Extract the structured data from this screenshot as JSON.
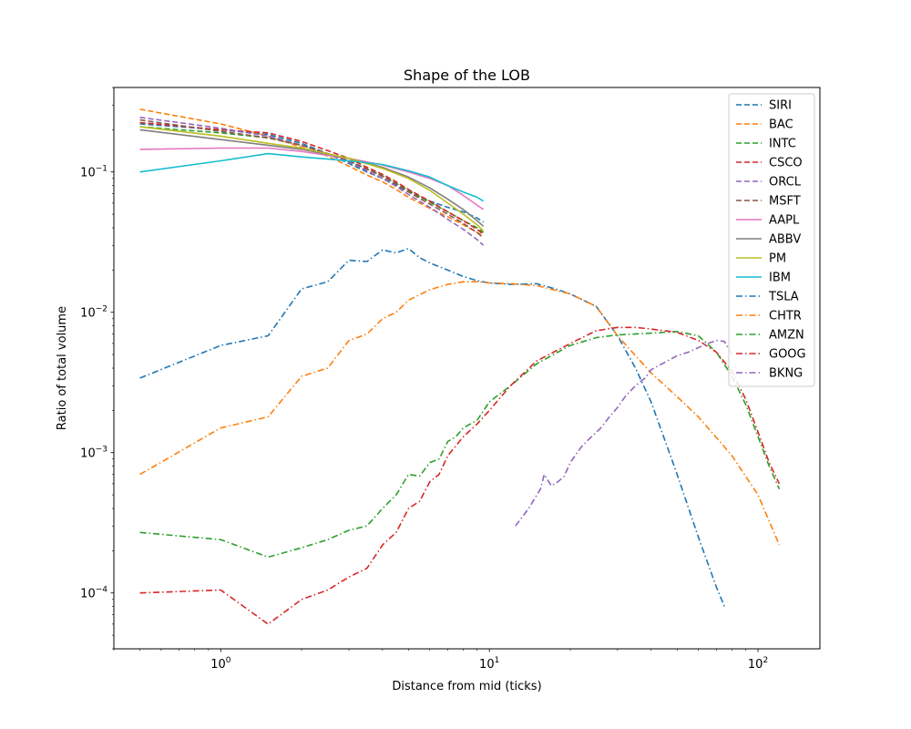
{
  "chart_data": {
    "type": "line",
    "title": "Shape of the LOB",
    "xlabel": "Distance from mid (ticks)",
    "ylabel": "Ratio of total volume",
    "xscale": "log",
    "yscale": "log",
    "xlim": [
      0.4,
      170
    ],
    "ylim": [
      4e-05,
      0.4
    ],
    "grid": false,
    "legend_position": "top-right",
    "x_ticks": [
      {
        "value": 1,
        "base": "10",
        "exp": "0"
      },
      {
        "value": 10,
        "base": "10",
        "exp": "1"
      },
      {
        "value": 100,
        "base": "10",
        "exp": "2"
      }
    ],
    "y_ticks": [
      {
        "value": 0.0001,
        "base": "10",
        "exp": "−4"
      },
      {
        "value": 0.001,
        "base": "10",
        "exp": "−3"
      },
      {
        "value": 0.01,
        "base": "10",
        "exp": "−2"
      },
      {
        "value": 0.1,
        "base": "10",
        "exp": "−1"
      }
    ],
    "series": [
      {
        "name": "SIRI",
        "color": "#1f77b4",
        "dash": "dashed",
        "x": [
          0.5,
          1,
          1.5,
          2,
          2.5,
          3,
          3.5,
          4,
          4.5,
          5,
          6,
          7,
          8,
          9,
          9.5
        ],
        "y": [
          0.22,
          0.2,
          0.185,
          0.16,
          0.135,
          0.115,
          0.1,
          0.09,
          0.08,
          0.072,
          0.062,
          0.056,
          0.052,
          0.047,
          0.044
        ]
      },
      {
        "name": "BAC",
        "color": "#ff7f0e",
        "dash": "dashed",
        "x": [
          0.5,
          1,
          1.5,
          2,
          2.5,
          3,
          3.5,
          4,
          4.5,
          5,
          6,
          7,
          8,
          9,
          9.5
        ],
        "y": [
          0.28,
          0.22,
          0.18,
          0.15,
          0.13,
          0.11,
          0.095,
          0.085,
          0.075,
          0.066,
          0.055,
          0.048,
          0.042,
          0.037,
          0.035
        ]
      },
      {
        "name": "INTC",
        "color": "#2ca02c",
        "dash": "dashed",
        "x": [
          0.5,
          1,
          1.5,
          2,
          2.5,
          3,
          3.5,
          4,
          4.5,
          5,
          6,
          7,
          8,
          9,
          9.5
        ],
        "y": [
          0.21,
          0.19,
          0.175,
          0.155,
          0.135,
          0.12,
          0.105,
          0.094,
          0.083,
          0.074,
          0.061,
          0.052,
          0.045,
          0.04,
          0.037
        ]
      },
      {
        "name": "CSCO",
        "color": "#d62728",
        "dash": "dashed",
        "x": [
          0.5,
          1,
          1.5,
          2,
          2.5,
          3,
          3.5,
          4,
          4.5,
          5,
          6,
          7,
          8,
          9,
          9.5
        ],
        "y": [
          0.225,
          0.2,
          0.19,
          0.165,
          0.142,
          0.125,
          0.108,
          0.096,
          0.085,
          0.075,
          0.062,
          0.052,
          0.045,
          0.039,
          0.036
        ]
      },
      {
        "name": "ORCL",
        "color": "#9467bd",
        "dash": "dashed",
        "x": [
          0.5,
          1,
          1.5,
          2,
          2.5,
          3,
          3.5,
          4,
          4.5,
          5,
          6,
          7,
          8,
          9,
          9.5
        ],
        "y": [
          0.245,
          0.205,
          0.18,
          0.155,
          0.135,
          0.118,
          0.102,
          0.09,
          0.079,
          0.069,
          0.056,
          0.046,
          0.039,
          0.033,
          0.03
        ]
      },
      {
        "name": "MSFT",
        "color": "#8c564b",
        "dash": "dashed",
        "x": [
          0.5,
          1,
          1.5,
          2,
          2.5,
          3,
          3.5,
          4,
          4.5,
          5,
          6,
          7,
          8,
          9,
          9.5
        ],
        "y": [
          0.235,
          0.195,
          0.175,
          0.155,
          0.135,
          0.12,
          0.105,
          0.093,
          0.082,
          0.072,
          0.059,
          0.05,
          0.043,
          0.037,
          0.034
        ]
      },
      {
        "name": "AAPL",
        "color": "#e377c2",
        "dash": "solid",
        "x": [
          0.5,
          1,
          1.5,
          2,
          3,
          4,
          5,
          6,
          7,
          8,
          9,
          9.5
        ],
        "y": [
          0.145,
          0.148,
          0.148,
          0.14,
          0.125,
          0.112,
          0.1,
          0.09,
          0.08,
          0.068,
          0.058,
          0.054
        ]
      },
      {
        "name": "ABBV",
        "color": "#7f7f7f",
        "dash": "solid",
        "x": [
          0.5,
          1,
          1.5,
          2,
          3,
          4,
          5,
          6,
          7,
          8,
          9,
          9.5
        ],
        "y": [
          0.2,
          0.17,
          0.155,
          0.145,
          0.125,
          0.108,
          0.092,
          0.077,
          0.064,
          0.054,
          0.045,
          0.041
        ]
      },
      {
        "name": "PM",
        "color": "#bcbd22",
        "dash": "solid",
        "x": [
          0.5,
          1,
          1.5,
          2,
          3,
          4,
          5,
          6,
          7,
          8,
          9,
          9.5
        ],
        "y": [
          0.21,
          0.18,
          0.16,
          0.148,
          0.125,
          0.106,
          0.09,
          0.074,
          0.06,
          0.05,
          0.042,
          0.038
        ]
      },
      {
        "name": "IBM",
        "color": "#17becf",
        "dash": "solid",
        "x": [
          0.5,
          1,
          1.5,
          2,
          3,
          4,
          5,
          6,
          7,
          8,
          9,
          9.5
        ],
        "y": [
          0.1,
          0.12,
          0.135,
          0.128,
          0.12,
          0.113,
          0.102,
          0.092,
          0.08,
          0.072,
          0.066,
          0.062
        ]
      },
      {
        "name": "TSLA",
        "color": "#1f77b4",
        "dash": "dashdot",
        "x": [
          0.5,
          1,
          1.5,
          2,
          2.5,
          3,
          3.5,
          4,
          4.5,
          5,
          5.5,
          6,
          7,
          8,
          9,
          10,
          12,
          15,
          18,
          20,
          25,
          30,
          35,
          40,
          50,
          60,
          70,
          75
        ],
        "y": [
          0.0034,
          0.0058,
          0.0068,
          0.0147,
          0.0165,
          0.0235,
          0.023,
          0.0278,
          0.0265,
          0.0285,
          0.0245,
          0.0225,
          0.02,
          0.018,
          0.0168,
          0.0162,
          0.0158,
          0.016,
          0.0145,
          0.0135,
          0.011,
          0.0068,
          0.004,
          0.0023,
          0.0007,
          0.00025,
          0.00011,
          8e-05
        ]
      },
      {
        "name": "CHTR",
        "color": "#ff7f0e",
        "dash": "dashdot",
        "x": [
          0.5,
          1,
          1.5,
          2,
          2.5,
          3,
          3.5,
          4,
          4.5,
          5,
          6,
          7,
          8,
          9,
          10,
          12,
          15,
          20,
          25,
          30,
          40,
          50,
          60,
          80,
          100,
          120
        ],
        "y": [
          0.0007,
          0.0015,
          0.0018,
          0.0035,
          0.004,
          0.0063,
          0.007,
          0.009,
          0.01,
          0.0122,
          0.0145,
          0.0158,
          0.0165,
          0.0165,
          0.0162,
          0.016,
          0.0155,
          0.0135,
          0.011,
          0.0068,
          0.0037,
          0.0025,
          0.0018,
          0.00095,
          0.0005,
          0.00022
        ]
      },
      {
        "name": "AMZN",
        "color": "#2ca02c",
        "dash": "dashdot",
        "x": [
          0.5,
          1,
          1.5,
          2,
          2.5,
          3,
          3.5,
          4,
          4.5,
          5,
          5.5,
          6,
          6.5,
          7,
          7.5,
          8,
          9,
          10,
          12,
          15,
          20,
          25,
          30,
          40,
          50,
          60,
          70,
          80,
          90,
          100,
          110,
          120
        ],
        "y": [
          0.00027,
          0.00024,
          0.00018,
          0.00021,
          0.00024,
          0.00028,
          0.0003,
          0.0004,
          0.0005,
          0.0007,
          0.00068,
          0.00085,
          0.0009,
          0.0012,
          0.0013,
          0.0015,
          0.0017,
          0.0023,
          0.003,
          0.0043,
          0.0058,
          0.0066,
          0.0069,
          0.0071,
          0.0073,
          0.0068,
          0.0052,
          0.0035,
          0.0022,
          0.0013,
          0.0008,
          0.00055
        ]
      },
      {
        "name": "GOOG",
        "color": "#d62728",
        "dash": "dashdot",
        "x": [
          0.5,
          1,
          1.5,
          2,
          2.5,
          3,
          3.5,
          4,
          4.5,
          5,
          5.5,
          6,
          6.5,
          7,
          8,
          9,
          10,
          12,
          15,
          20,
          25,
          30,
          35,
          40,
          50,
          60,
          70,
          80,
          90,
          100,
          110,
          120
        ],
        "y": [
          0.0001,
          0.000105,
          6e-05,
          9e-05,
          0.000105,
          0.00013,
          0.00015,
          0.00022,
          0.00027,
          0.0004,
          0.00045,
          0.00062,
          0.0007,
          0.00095,
          0.0013,
          0.0016,
          0.002,
          0.003,
          0.0045,
          0.006,
          0.0074,
          0.0078,
          0.0078,
          0.0076,
          0.0072,
          0.0063,
          0.0052,
          0.0038,
          0.0024,
          0.0014,
          0.00085,
          0.0006
        ]
      },
      {
        "name": "BKNG",
        "color": "#9467bd",
        "dash": "dashdot",
        "x": [
          12.5,
          14,
          15.5,
          16,
          17,
          18,
          19,
          20,
          22,
          24,
          26,
          28,
          30,
          32,
          35,
          38,
          40,
          45,
          50,
          55,
          60,
          65,
          70,
          75,
          80
        ],
        "y": [
          0.0003,
          0.0004,
          0.00055,
          0.0007,
          0.00058,
          0.00062,
          0.00068,
          0.00085,
          0.0011,
          0.0013,
          0.0015,
          0.0018,
          0.0021,
          0.0025,
          0.003,
          0.0034,
          0.0039,
          0.0044,
          0.0049,
          0.0052,
          0.0056,
          0.006,
          0.0063,
          0.0062,
          0.005
        ]
      }
    ]
  }
}
